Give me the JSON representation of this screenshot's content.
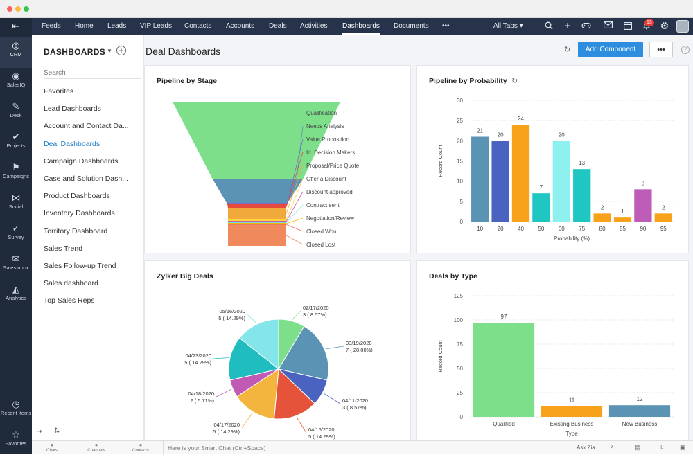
{
  "window": {
    "controls_colors": [
      "#fc605b",
      "#fdbc40",
      "#34c84a"
    ]
  },
  "rail": {
    "items": [
      {
        "label": "CRM",
        "icon": "crm-icon",
        "glyph": "◎"
      },
      {
        "label": "SalesIQ",
        "icon": "salesiq-icon",
        "glyph": "◉"
      },
      {
        "label": "Desk",
        "icon": "desk-icon",
        "glyph": "✎"
      },
      {
        "label": "Projects",
        "icon": "projects-icon",
        "glyph": "✔"
      },
      {
        "label": "Campaigns",
        "icon": "campaigns-icon",
        "glyph": "⚑"
      },
      {
        "label": "Social",
        "icon": "social-icon",
        "glyph": "⋈"
      },
      {
        "label": "Survey",
        "icon": "survey-icon",
        "glyph": "✓"
      },
      {
        "label": "SalesInbox",
        "icon": "salesinbox-icon",
        "glyph": "✉"
      },
      {
        "label": "Analytics",
        "icon": "analytics-icon",
        "glyph": "◭"
      }
    ],
    "bottom_items": [
      {
        "label": "Recent Items",
        "icon": "clock-icon",
        "glyph": "◷"
      },
      {
        "label": "Favorites",
        "icon": "star-icon",
        "glyph": "☆"
      }
    ]
  },
  "topnav": {
    "tabs": [
      "Feeds",
      "Home",
      "Leads",
      "VIP Leads",
      "Contacts",
      "Accounts",
      "Deals",
      "Activities",
      "Dashboards",
      "Documents",
      "•••"
    ],
    "active_tab": "Dashboards",
    "all_tabs_label": "All Tabs ▾",
    "notification_count": "13"
  },
  "sidebar": {
    "title": "DASHBOARDS",
    "search_placeholder": "Search",
    "items": [
      "Favorites",
      "Lead Dashboards",
      "Account and Contact Da...",
      "Deal Dashboards",
      "Campaign Dashboards",
      "Case and Solution Dash...",
      "Product Dashboards",
      "Inventory Dashboards",
      "Territory Dashboard",
      "Sales Trend",
      "Sales Follow-up Trend",
      "Sales dashboard",
      "Top Sales Reps"
    ],
    "active_item": "Deal Dashboards"
  },
  "main": {
    "title": "Deal Dashboards",
    "add_component_label": "Add Component",
    "more_label": "•••"
  },
  "bottombar": {
    "items": [
      "Chats",
      "Channels",
      "Contacts"
    ],
    "smart_chat": "Here is your Smart Chat (Ctrl+Space)",
    "ask_zia": "Ask Zia"
  },
  "chart_data": [
    {
      "type": "funnel",
      "title": "Pipeline by Stage",
      "stages": [
        "Qualification",
        "Needs Analysis",
        "Value Proposition",
        "Id. Decision Makers",
        "Proposal/Price Quote",
        "Offer a Discount",
        "Discount approved",
        "Contract sent",
        "Negotiation/Review",
        "Closed Won",
        "Closed Lost"
      ],
      "colors": [
        "#7ddf8a",
        "#5b93b4",
        "#7b6ac7",
        "#e64a3a",
        "#f2a93b",
        "#ffd23f",
        "#c95ca8",
        "#6fdde3",
        "#f4b400",
        "#e76a5d",
        "#f08a5d"
      ]
    },
    {
      "type": "bar",
      "title": "Pipeline by Probability",
      "xlabel": "Probability (%)",
      "ylabel": "Record Count",
      "ylim": [
        0,
        30
      ],
      "yticks": [
        0,
        5,
        10,
        15,
        20,
        25,
        30
      ],
      "categories": [
        "10",
        "20",
        "40",
        "50",
        "60",
        "75",
        "80",
        "85",
        "90",
        "95"
      ],
      "values": [
        21,
        20,
        24,
        7,
        20,
        13,
        2,
        1,
        8,
        2
      ],
      "colors": [
        "#5b93b4",
        "#4a63c0",
        "#f7a21a",
        "#20c6c2",
        "#8ef1f0",
        "#20c6c2",
        "#f7a21a",
        "#f7a21a",
        "#bd5db8",
        "#f7a21a"
      ]
    },
    {
      "type": "pie",
      "title": "Zylker Big Deals",
      "slices": [
        {
          "label": "02/17/2020",
          "value": 3,
          "pct": "8.57%",
          "color": "#7ddf8a"
        },
        {
          "label": "03/19/2020",
          "value": 7,
          "pct": "20.00%",
          "color": "#5b93b4"
        },
        {
          "label": "04/11/2020",
          "value": 3,
          "pct": "8.57%",
          "color": "#4a63c0"
        },
        {
          "label": "04/16/2020",
          "value": 5,
          "pct": "14.29%",
          "color": "#e5543a"
        },
        {
          "label": "04/17/2020",
          "value": 5,
          "pct": "14.29%",
          "color": "#f4b53f"
        },
        {
          "label": "04/18/2020",
          "value": 2,
          "pct": "5.71%",
          "color": "#c05ab5"
        },
        {
          "label": "04/23/2020",
          "value": 5,
          "pct": "14.29%",
          "color": "#1fbcc0"
        },
        {
          "label": "05/16/2020",
          "value": 5,
          "pct": "14.29%",
          "color": "#84e6ea"
        }
      ]
    },
    {
      "type": "bar",
      "title": "Deals by Type",
      "xlabel": "Type",
      "ylabel": "Record Count",
      "ylim": [
        0,
        125
      ],
      "yticks": [
        0,
        25,
        50,
        75,
        100,
        125
      ],
      "categories": [
        "Qualified",
        "Existing Business",
        "New Business"
      ],
      "values": [
        97,
        11,
        12
      ],
      "colors": [
        "#7ddf8a",
        "#f7a21a",
        "#5b93b4"
      ]
    }
  ]
}
